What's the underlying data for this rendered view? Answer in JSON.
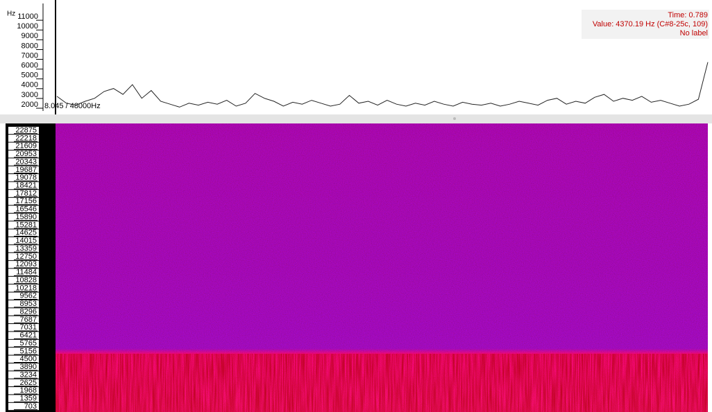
{
  "top_pane": {
    "unit": "Hz",
    "ylim": [
      1150,
      12500
    ],
    "yticks": [
      11000,
      10000,
      9000,
      8000,
      7000,
      6000,
      5000,
      4000,
      3000,
      2000
    ],
    "values": [
      3000,
      2300,
      2100,
      2500,
      2800,
      3500,
      3800,
      3200,
      4200,
      2800,
      3600,
      2500,
      2200,
      1900,
      2300,
      2100,
      2400,
      2200,
      2600,
      2000,
      2300,
      3300,
      2800,
      2500,
      2000,
      2400,
      2200,
      2600,
      2300,
      2000,
      2200,
      3100,
      2300,
      2500,
      2100,
      2600,
      2200,
      2000,
      2300,
      2100,
      2500,
      2200,
      2000,
      2400,
      2200,
      2100,
      2300,
      2000,
      2200,
      2500,
      2300,
      2100,
      2600,
      2800,
      2200,
      2500,
      2300,
      2900,
      3200,
      2500,
      2800,
      2600,
      3000,
      2400,
      2600,
      2300,
      2000,
      2200,
      2700,
      6500
    ],
    "rate_label": "8.045 / 48000Hz"
  },
  "info_box": {
    "time": "Time: 0.789",
    "value": "Value: 4370.19 Hz (C#8-25c, 109)",
    "label": "No label"
  },
  "spectrogram": {
    "scale_labels": [
      22875,
      22218,
      21609,
      20953,
      20343,
      19687,
      19078,
      18421,
      17812,
      17156,
      16546,
      15890,
      15281,
      14625,
      14015,
      13359,
      12750,
      12093,
      11484,
      10828,
      10218,
      9562,
      8953,
      8296,
      7687,
      7031,
      6421,
      5765,
      5156,
      4500,
      3890,
      3234,
      2625,
      1968,
      1359,
      703
    ]
  }
}
